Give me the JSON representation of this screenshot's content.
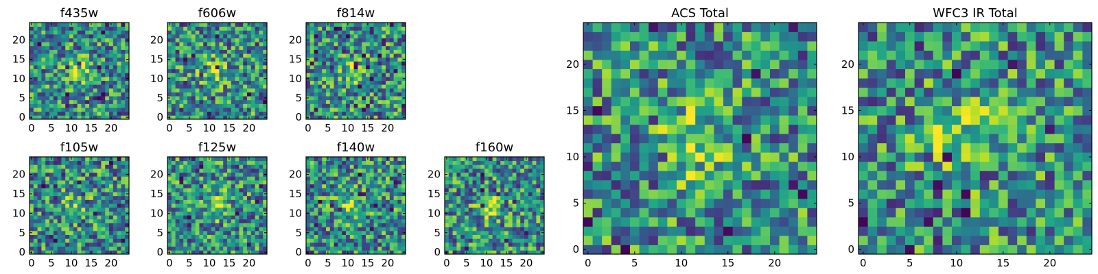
{
  "chart_data": {
    "type": "heatmap",
    "colormap": "viridis",
    "panels": [
      {
        "title": "f435w",
        "xticks": [
          0,
          5,
          10,
          15,
          20
        ],
        "yticks": [
          0,
          5,
          10,
          15,
          20
        ],
        "xlim": [
          0,
          24
        ],
        "ylim": [
          0,
          24
        ],
        "pixel_grid": [
          25,
          25
        ],
        "source_peak": [
          13,
          12
        ]
      },
      {
        "title": "f606w",
        "xticks": [
          0,
          5,
          10,
          15,
          20
        ],
        "yticks": [
          0,
          5,
          10,
          15,
          20
        ],
        "xlim": [
          0,
          24
        ],
        "ylim": [
          0,
          24
        ],
        "pixel_grid": [
          25,
          25
        ],
        "source_peak": [
          11,
          12
        ]
      },
      {
        "title": "f814w",
        "xticks": [
          0,
          5,
          10,
          15,
          20
        ],
        "yticks": [
          0,
          5,
          10,
          15,
          20
        ],
        "xlim": [
          0,
          24
        ],
        "ylim": [
          0,
          24
        ],
        "pixel_grid": [
          25,
          25
        ],
        "source_peak": [
          12,
          12
        ]
      },
      {
        "title": "f105w",
        "xticks": [
          0,
          5,
          10,
          15,
          20
        ],
        "yticks": [
          0,
          5,
          10,
          15,
          20
        ],
        "xlim": [
          0,
          24
        ],
        "ylim": [
          0,
          24
        ],
        "pixel_grid": [
          25,
          25
        ],
        "source_peak": [
          11,
          12
        ]
      },
      {
        "title": "f125w",
        "xticks": [
          0,
          5,
          10,
          15,
          20
        ],
        "yticks": [
          0,
          5,
          10,
          15,
          20
        ],
        "xlim": [
          0,
          24
        ],
        "ylim": [
          0,
          24
        ],
        "pixel_grid": [
          25,
          25
        ],
        "source_peak": [
          12,
          12
        ]
      },
      {
        "title": "f140w",
        "xticks": [
          0,
          5,
          10,
          15,
          20
        ],
        "yticks": [
          0,
          5,
          10,
          15,
          20
        ],
        "xlim": [
          0,
          24
        ],
        "ylim": [
          0,
          24
        ],
        "pixel_grid": [
          25,
          25
        ],
        "source_peak": [
          11,
          12
        ]
      },
      {
        "title": "f160w",
        "xticks": [
          0,
          5,
          10,
          15,
          20
        ],
        "yticks": [
          0,
          5,
          10,
          15,
          20
        ],
        "xlim": [
          0,
          24
        ],
        "ylim": [
          0,
          24
        ],
        "pixel_grid": [
          25,
          25
        ],
        "source_peak": [
          11,
          12
        ]
      },
      {
        "title": "ACS Total",
        "xticks": [
          0,
          5,
          10,
          15,
          20
        ],
        "yticks": [
          0,
          5,
          10,
          15,
          20
        ],
        "xlim": [
          0,
          24
        ],
        "ylim": [
          0,
          24
        ],
        "pixel_grid": [
          25,
          25
        ],
        "source_peak": [
          11,
          12
        ]
      },
      {
        "title": "WFC3 IR Total",
        "xticks": [
          0,
          5,
          10,
          15,
          20
        ],
        "yticks": [
          0,
          5,
          10,
          15,
          20
        ],
        "xlim": [
          0,
          24
        ],
        "ylim": [
          0,
          24
        ],
        "pixel_grid": [
          25,
          25
        ],
        "source_peak": [
          11,
          12
        ]
      }
    ]
  }
}
